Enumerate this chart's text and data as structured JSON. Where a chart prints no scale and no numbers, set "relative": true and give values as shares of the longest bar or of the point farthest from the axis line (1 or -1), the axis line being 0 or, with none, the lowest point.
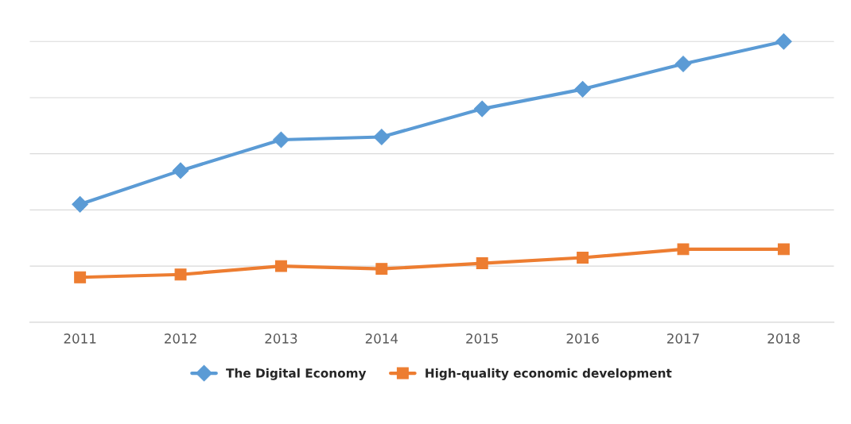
{
  "chart_data": {
    "type": "line",
    "relative": true,
    "categories": [
      "2011",
      "2012",
      "2013",
      "2014",
      "2015",
      "2016",
      "2017",
      "2018"
    ],
    "series": [
      {
        "name": "The Digital Economy",
        "color": "#5b9bd5",
        "marker": "diamond",
        "values": [
          0.42,
          0.54,
          0.65,
          0.66,
          0.76,
          0.83,
          0.92,
          1.0
        ]
      },
      {
        "name": "High-quality economic development",
        "color": "#ed7d31",
        "marker": "square",
        "values": [
          0.16,
          0.17,
          0.2,
          0.19,
          0.21,
          0.23,
          0.26,
          0.26
        ]
      }
    ],
    "grid": "y",
    "legend": "bottom",
    "line_style": "solid"
  }
}
